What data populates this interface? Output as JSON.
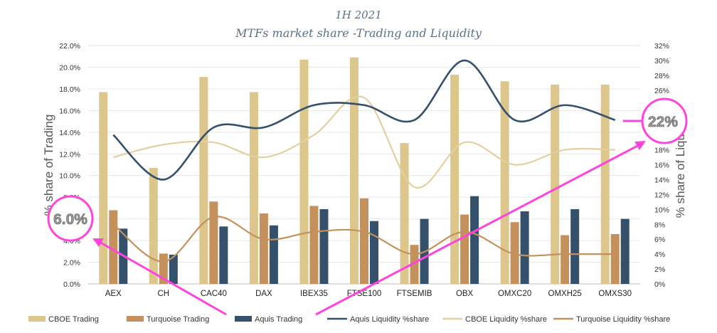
{
  "chart_data": {
    "type": "bar",
    "title": "1H 2021",
    "subtitle": "MTFs market share -Trading and Liquidity",
    "ylabel": "% share of Trading",
    "y2label": "% share of Liquidity",
    "ylim": [
      0,
      22
    ],
    "y2lim": [
      0,
      32
    ],
    "ytick_labels": [
      "0.0%",
      "2.0%",
      "4.0%",
      "6.0%",
      "8.0%",
      "10.0%",
      "12.0%",
      "14.0%",
      "16.0%",
      "18.0%",
      "20.0%",
      "22.0%"
    ],
    "y2tick_labels": [
      "0%",
      "2%",
      "4%",
      "6%",
      "8%",
      "10%",
      "12%",
      "14%",
      "16%",
      "18%",
      "20%",
      "22%",
      "24%",
      "26%",
      "28%",
      "30%",
      "32%"
    ],
    "categories": [
      "AEX",
      "CH",
      "CAC40",
      "DAX",
      "IBEX35",
      "FTSE100",
      "FTSEMIB",
      "OBX",
      "OMXC20",
      "OMXH25",
      "OMXS30"
    ],
    "bar_series": [
      {
        "name": "CBOE Trading",
        "color": "#dcc68b",
        "values": [
          17.7,
          10.7,
          19.1,
          17.7,
          20.7,
          20.9,
          13.0,
          19.3,
          18.7,
          18.4,
          18.4
        ]
      },
      {
        "name": "Turquoise Trading",
        "color": "#c4915c",
        "values": [
          6.8,
          2.8,
          7.6,
          6.5,
          7.2,
          7.9,
          3.6,
          6.4,
          5.7,
          4.5,
          4.6
        ]
      },
      {
        "name": "Aquis Trading",
        "color": "#34506a",
        "values": [
          5.1,
          2.7,
          5.3,
          5.4,
          6.9,
          5.8,
          6.0,
          8.1,
          6.7,
          6.9,
          6.0
        ]
      }
    ],
    "line_series": [
      {
        "name": "Aquis Liquidity %share",
        "color": "#34506a",
        "axis": "right",
        "values": [
          20.0,
          14.0,
          21.0,
          21.0,
          24.0,
          24.0,
          22.0,
          30.0,
          22.0,
          24.0,
          22.0
        ]
      },
      {
        "name": "CBOE Liquidity %share",
        "color": "#e3d0a0",
        "axis": "right",
        "values": [
          17.0,
          18.7,
          19.0,
          17.0,
          20.0,
          25.0,
          13.0,
          19.0,
          16.0,
          18.0,
          18.0
        ]
      },
      {
        "name": "Turquoise Liquidity %share",
        "color": "#c4915c",
        "axis": "right",
        "values": [
          8.0,
          3.0,
          9.0,
          6.0,
          7.0,
          7.0,
          4.0,
          7.0,
          4.0,
          4.0,
          4.0
        ]
      }
    ],
    "legend_position": "bottom",
    "grid": true,
    "annotations": [
      {
        "text": "6.0%",
        "color": "#ff44dd"
      },
      {
        "text": "22%",
        "color": "#ff44dd"
      }
    ]
  }
}
